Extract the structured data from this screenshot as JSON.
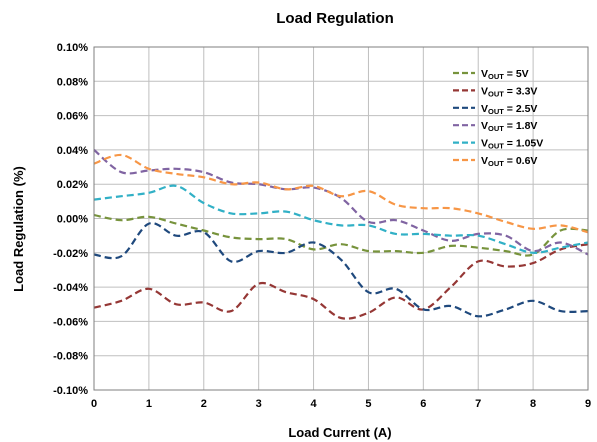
{
  "chart_data": {
    "type": "line",
    "title": "Load Regulation",
    "xlabel": "Load Current (A)",
    "ylabel": "Load Regulation (%)",
    "xlim": [
      0,
      9
    ],
    "ylim": [
      -0.1,
      0.1
    ],
    "x_ticks": [
      "0",
      "1",
      "2",
      "3",
      "4",
      "5",
      "6",
      "7",
      "8",
      "9"
    ],
    "y_ticks": [
      "0.10%",
      "0.08%",
      "0.06%",
      "0.04%",
      "0.02%",
      "0.00%",
      "-0.02%",
      "-0.04%",
      "-0.06%",
      "-0.08%",
      "-0.10%"
    ],
    "grid": true,
    "legend_position": "top-right",
    "series": [
      {
        "legend_prefix": "V",
        "legend_sub": "OUT",
        "legend_suffix": " = 5V",
        "color": "#77933c",
        "points": [
          [
            0,
            0.002
          ],
          [
            0.5,
            -0.001
          ],
          [
            1,
            0.001
          ],
          [
            1.5,
            -0.003
          ],
          [
            2,
            -0.007
          ],
          [
            2.5,
            -0.011
          ],
          [
            3,
            -0.012
          ],
          [
            3.5,
            -0.012
          ],
          [
            4,
            -0.018
          ],
          [
            4.5,
            -0.015
          ],
          [
            5,
            -0.019
          ],
          [
            5.5,
            -0.019
          ],
          [
            6,
            -0.02
          ],
          [
            6.5,
            -0.016
          ],
          [
            7,
            -0.017
          ],
          [
            7.5,
            -0.019
          ],
          [
            8,
            -0.021
          ],
          [
            8.5,
            -0.007
          ],
          [
            9,
            -0.007
          ]
        ]
      },
      {
        "legend_prefix": "V",
        "legend_sub": "OUT",
        "legend_suffix": " = 3.3V",
        "color": "#953735",
        "points": [
          [
            0,
            -0.052
          ],
          [
            0.5,
            -0.048
          ],
          [
            1,
            -0.041
          ],
          [
            1.5,
            -0.05
          ],
          [
            2,
            -0.049
          ],
          [
            2.5,
            -0.054
          ],
          [
            3,
            -0.038
          ],
          [
            3.5,
            -0.043
          ],
          [
            4,
            -0.047
          ],
          [
            4.5,
            -0.058
          ],
          [
            5,
            -0.055
          ],
          [
            5.5,
            -0.046
          ],
          [
            6,
            -0.053
          ],
          [
            6.5,
            -0.04
          ],
          [
            7,
            -0.025
          ],
          [
            7.5,
            -0.028
          ],
          [
            8,
            -0.026
          ],
          [
            8.5,
            -0.018
          ],
          [
            9,
            -0.015
          ]
        ]
      },
      {
        "legend_prefix": "V",
        "legend_sub": "OUT",
        "legend_suffix": " = 2.5V",
        "color": "#1f497d",
        "points": [
          [
            0,
            -0.021
          ],
          [
            0.5,
            -0.022
          ],
          [
            1,
            -0.003
          ],
          [
            1.5,
            -0.01
          ],
          [
            2,
            -0.008
          ],
          [
            2.5,
            -0.025
          ],
          [
            3,
            -0.019
          ],
          [
            3.5,
            -0.02
          ],
          [
            4,
            -0.014
          ],
          [
            4.5,
            -0.024
          ],
          [
            5,
            -0.043
          ],
          [
            5.5,
            -0.041
          ],
          [
            6,
            -0.053
          ],
          [
            6.5,
            -0.051
          ],
          [
            7,
            -0.057
          ],
          [
            7.5,
            -0.053
          ],
          [
            8,
            -0.048
          ],
          [
            8.5,
            -0.054
          ],
          [
            9,
            -0.054
          ]
        ]
      },
      {
        "legend_prefix": "V",
        "legend_sub": "OUT",
        "legend_suffix": " = 1.8V",
        "color": "#8064a2",
        "points": [
          [
            0,
            0.04
          ],
          [
            0.5,
            0.027
          ],
          [
            1,
            0.028
          ],
          [
            1.5,
            0.029
          ],
          [
            2,
            0.027
          ],
          [
            2.5,
            0.021
          ],
          [
            3,
            0.02
          ],
          [
            3.5,
            0.017
          ],
          [
            4,
            0.018
          ],
          [
            4.5,
            0.012
          ],
          [
            5,
            -0.002
          ],
          [
            5.5,
            -0.001
          ],
          [
            6,
            -0.007
          ],
          [
            6.5,
            -0.013
          ],
          [
            7,
            -0.009
          ],
          [
            7.5,
            -0.01
          ],
          [
            8,
            -0.019
          ],
          [
            8.5,
            -0.014
          ],
          [
            9,
            -0.021
          ]
        ]
      },
      {
        "legend_prefix": "V",
        "legend_sub": "OUT",
        "legend_suffix": " = 1.05V",
        "color": "#31b0c6",
        "points": [
          [
            0,
            0.011
          ],
          [
            0.5,
            0.013
          ],
          [
            1,
            0.015
          ],
          [
            1.5,
            0.019
          ],
          [
            2,
            0.009
          ],
          [
            2.5,
            0.003
          ],
          [
            3,
            0.003
          ],
          [
            3.5,
            0.004
          ],
          [
            4,
            -0.001
          ],
          [
            4.5,
            -0.004
          ],
          [
            5,
            -0.004
          ],
          [
            5.5,
            -0.009
          ],
          [
            6,
            -0.009
          ],
          [
            6.5,
            -0.01
          ],
          [
            7,
            -0.01
          ],
          [
            7.5,
            -0.015
          ],
          [
            8,
            -0.02
          ],
          [
            8.5,
            -0.017
          ],
          [
            9,
            -0.014
          ]
        ]
      },
      {
        "legend_prefix": "V",
        "legend_sub": "OUT",
        "legend_suffix": " = 0.6V",
        "color": "#f79646",
        "points": [
          [
            0,
            0.032
          ],
          [
            0.5,
            0.037
          ],
          [
            1,
            0.029
          ],
          [
            1.5,
            0.026
          ],
          [
            2,
            0.024
          ],
          [
            2.5,
            0.02
          ],
          [
            3,
            0.021
          ],
          [
            3.5,
            0.017
          ],
          [
            4,
            0.019
          ],
          [
            4.5,
            0.013
          ],
          [
            5,
            0.016
          ],
          [
            5.5,
            0.008
          ],
          [
            6,
            0.006
          ],
          [
            6.5,
            0.006
          ],
          [
            7,
            0.003
          ],
          [
            7.5,
            -0.002
          ],
          [
            8,
            -0.006
          ],
          [
            8.5,
            -0.004
          ],
          [
            9,
            -0.008
          ]
        ]
      }
    ]
  }
}
